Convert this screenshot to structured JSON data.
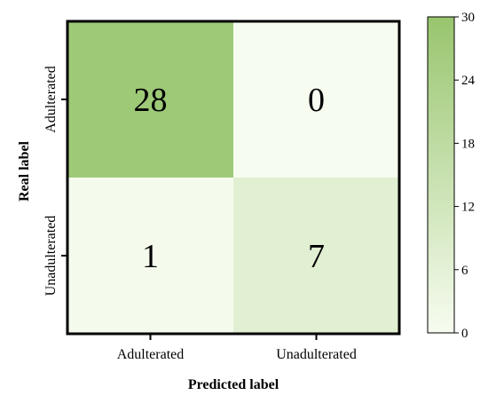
{
  "chart_data": {
    "type": "heatmap",
    "title": "",
    "xlabel": "Predicted label",
    "ylabel": "Real label",
    "x_categories": [
      "Adulterated",
      "Unadulterated"
    ],
    "y_categories": [
      "Adulterated",
      "Unadulterated"
    ],
    "values": [
      [
        28,
        0
      ],
      [
        1,
        7
      ]
    ],
    "colorbar": {
      "min": 0,
      "max": 30,
      "ticks": [
        "0",
        "6",
        "12",
        "18",
        "24",
        "30"
      ],
      "color_low": "#f7fcf0",
      "color_high": "#98c56e"
    }
  }
}
